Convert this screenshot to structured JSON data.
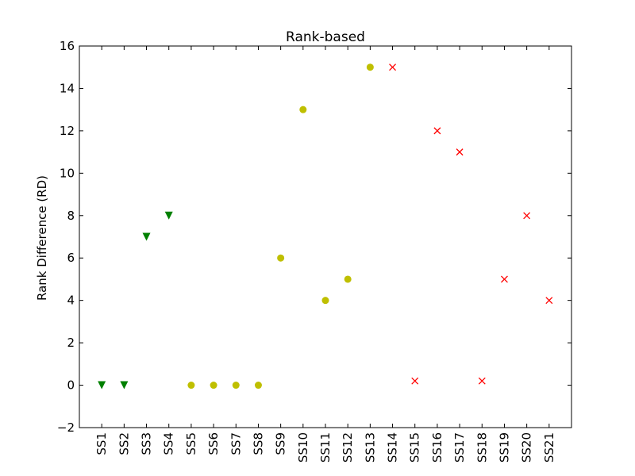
{
  "chart_data": {
    "type": "scatter",
    "title": "Rank-based",
    "ylabel": "Rank Difference (RD)",
    "xlabel": "",
    "ylim": [
      -2,
      16
    ],
    "yticks": [
      -2,
      0,
      2,
      4,
      6,
      8,
      10,
      12,
      14,
      16
    ],
    "ytick_labels": [
      "−2",
      "0",
      "2",
      "4",
      "6",
      "8",
      "10",
      "12",
      "14",
      "16"
    ],
    "categories": [
      "SS1",
      "SS2",
      "SS3",
      "SS4",
      "SS5",
      "SS6",
      "SS7",
      "SS8",
      "SS9",
      "SS10",
      "SS11",
      "SS12",
      "SS13",
      "SS14",
      "SS15",
      "SS16",
      "SS17",
      "SS18",
      "SS19",
      "SS20",
      "SS21"
    ],
    "grid": false,
    "series": [
      {
        "marker": "triangle-down",
        "color": "#008000",
        "x": [
          "SS1",
          "SS2",
          "SS3",
          "SS4"
        ],
        "values": [
          0,
          0,
          7,
          8
        ]
      },
      {
        "marker": "circle",
        "color": "#bfbf00",
        "x": [
          "SS5",
          "SS6",
          "SS7",
          "SS8",
          "SS9",
          "SS10",
          "SS11",
          "SS12",
          "SS13"
        ],
        "values": [
          0,
          0,
          0,
          0,
          6,
          13,
          4,
          5,
          15
        ]
      },
      {
        "marker": "x",
        "color": "#ff0000",
        "x": [
          "SS14",
          "SS15",
          "SS16",
          "SS17",
          "SS18",
          "SS19",
          "SS20",
          "SS21"
        ],
        "values": [
          15,
          0.2,
          12,
          11,
          0.2,
          5,
          8,
          4
        ]
      }
    ]
  }
}
